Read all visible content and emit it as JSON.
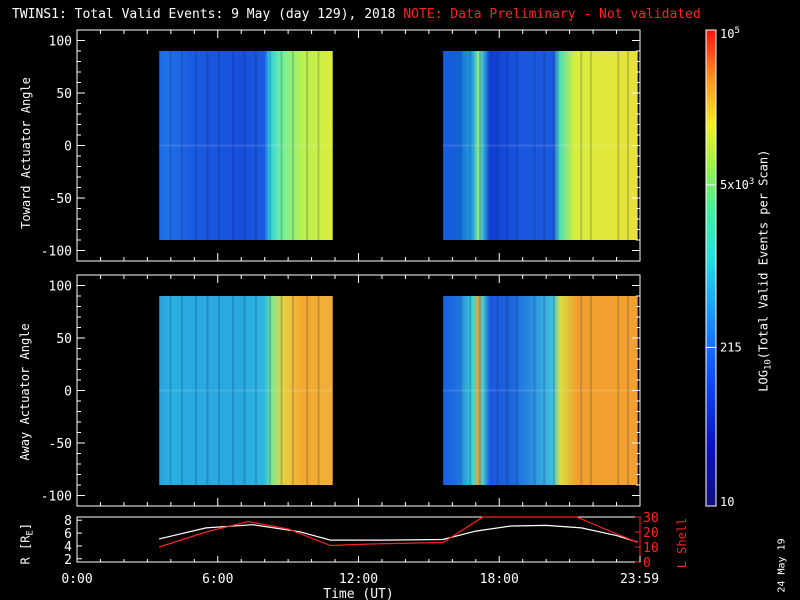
{
  "title": {
    "main": "TWINS1: Total Valid Events:  9 May (day 129), 2018",
    "note": "NOTE: Data Preliminary - Not validated"
  },
  "colors": {
    "note": "#ff2020",
    "orbit_r": "#ffffff",
    "orbit_l": "#ff2020"
  },
  "footer_date": "24 May 19",
  "chart_data": [
    {
      "type": "heatmap",
      "ylabel": "Toward Actuator Angle",
      "ylim": [
        -110,
        110
      ],
      "yticks": [
        "100",
        "50",
        "0",
        "-50",
        "-100"
      ],
      "xlim": [
        0,
        24
      ],
      "segments": [
        {
          "start": 3.5,
          "end": 10.9,
          "y_range": [
            -90,
            90
          ],
          "profile": [
            [
              "3.5",
              "#1a6be6"
            ],
            [
              "3.9",
              "#2070ea"
            ],
            [
              "5",
              "#1a5ae0"
            ],
            [
              "7",
              "#1850dc"
            ],
            [
              "8",
              "#1a5ae0"
            ],
            [
              "8.2",
              "#2ecfe0"
            ],
            [
              "8.7",
              "#70f0a0"
            ],
            [
              "9.6",
              "#b8f050"
            ],
            [
              "10.9",
              "#dcee3c"
            ]
          ]
        },
        {
          "start": 15.6,
          "end": 23.9,
          "y_range": [
            -90,
            90
          ],
          "profile": [
            [
              "15.6",
              "#1a5ae0"
            ],
            [
              "16.2",
              "#1060d8"
            ],
            [
              "16.9",
              "#2aa8e0"
            ],
            [
              "17.1",
              "#90f07a"
            ],
            [
              "17.3",
              "#3ab6e0"
            ],
            [
              "17.6",
              "#0f3ed0"
            ],
            [
              "18.5",
              "#1850dc"
            ],
            [
              "19.2",
              "#1a58de"
            ],
            [
              "20.3",
              "#1a5ae0"
            ],
            [
              "20.6",
              "#50e0b0"
            ],
            [
              "21.2",
              "#d8ee3c"
            ],
            [
              "23.9",
              "#e8e23a"
            ]
          ]
        }
      ]
    },
    {
      "type": "heatmap",
      "ylabel": "Away Actuator Angle",
      "ylim": [
        -110,
        110
      ],
      "yticks": [
        "100",
        "50",
        "0",
        "-50",
        "-100"
      ],
      "xlim": [
        0,
        24
      ],
      "segments": [
        {
          "start": 3.5,
          "end": 10.9,
          "y_range": [
            -90,
            90
          ],
          "profile": [
            [
              "3.5",
              "#2aa0e0"
            ],
            [
              "4",
              "#2ab0e0"
            ],
            [
              "5",
              "#2aa8e0"
            ],
            [
              "7",
              "#2aa8e0"
            ],
            [
              "8",
              "#30b8e0"
            ],
            [
              "8.3",
              "#80e890"
            ],
            [
              "8.8",
              "#e8d040"
            ],
            [
              "9.6",
              "#f4a830"
            ],
            [
              "10.9",
              "#f0b038"
            ]
          ]
        },
        {
          "start": 15.6,
          "end": 23.9,
          "y_range": [
            -90,
            90
          ],
          "profile": [
            [
              "15.6",
              "#1a60e0"
            ],
            [
              "16.2",
              "#1c70e0"
            ],
            [
              "16.9",
              "#40d8d0"
            ],
            [
              "17.1",
              "#f0a030"
            ],
            [
              "17.3",
              "#40d0d8"
            ],
            [
              "17.6",
              "#1c58dc"
            ],
            [
              "18.5",
              "#1c64dc"
            ],
            [
              "19.4",
              "#2a90e0"
            ],
            [
              "20.3",
              "#40c0e0"
            ],
            [
              "20.6",
              "#d8e040"
            ],
            [
              "21.3",
              "#f0a030"
            ],
            [
              "23.9",
              "#f4a030"
            ]
          ]
        }
      ]
    },
    {
      "type": "line",
      "ylabel": "R [R",
      "ylabel_sub": "E",
      "ylabel_close": "]",
      "y2label": "L Shell",
      "ylim": [
        1.5,
        8.5
      ],
      "yticks": [
        "8",
        "6",
        "4",
        "2"
      ],
      "y2lim": [
        0,
        30
      ],
      "y2ticks": [
        "30",
        "20",
        "10",
        "0"
      ],
      "xlim": [
        0,
        24
      ],
      "xlabel": "Time (UT)",
      "xticks": [
        "0:00",
        "6:00",
        "12:00",
        "18:00",
        "23:59"
      ],
      "series": [
        {
          "axis": "left",
          "x": [
            3.5,
            5.5,
            7.5,
            9.5,
            10.8,
            11.5,
            13,
            15.6,
            17,
            18.5,
            20,
            21.5,
            23,
            23.9
          ],
          "values": [
            5.1,
            6.8,
            7.3,
            6.2,
            4.9,
            4.9,
            4.9,
            5.0,
            6.3,
            7.1,
            7.2,
            6.8,
            5.6,
            4.6
          ]
        },
        {
          "axis": "right",
          "x": [
            3.5,
            5.5,
            7.3,
            9,
            10.8,
            12.5,
            15.6,
            17.3,
            21.3,
            22.5,
            23.9
          ],
          "values": [
            10,
            20,
            27,
            22,
            11,
            12,
            13,
            30,
            30,
            22,
            13
          ]
        }
      ]
    }
  ],
  "colorbar": {
    "label": "LOG",
    "label_sub": "10",
    "label_rest": "(Total Valid Events per Scan)",
    "range": [
      10,
      100000
    ],
    "ticks": [
      {
        "value": 100000,
        "base": "10",
        "sup": "5"
      },
      {
        "value": 5000,
        "base": "5x10",
        "sup": "3"
      },
      {
        "value": 215,
        "base": "215",
        "sup": ""
      },
      {
        "value": 10,
        "base": "10",
        "sup": ""
      }
    ]
  }
}
